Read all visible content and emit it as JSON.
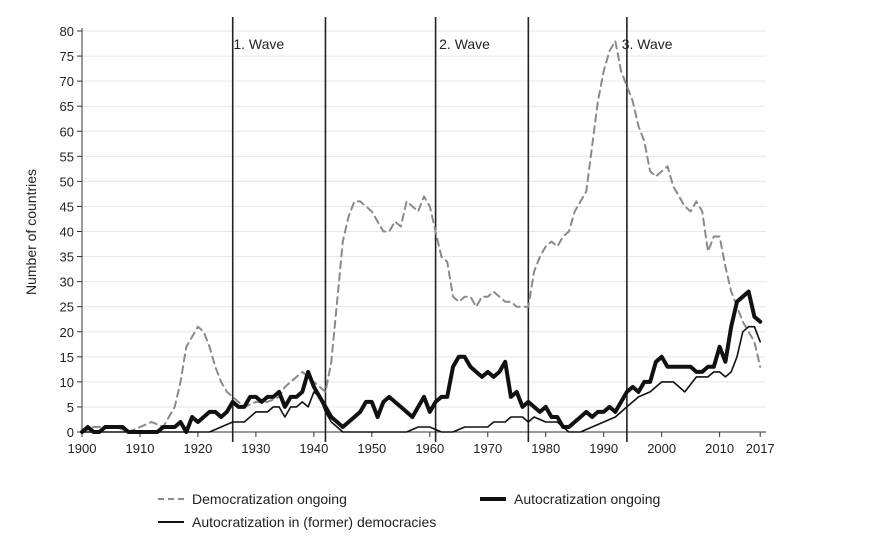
{
  "chart_data": {
    "type": "line",
    "title": "",
    "xlabel": "",
    "ylabel": "Number of countries",
    "xlim": [
      1900,
      2018
    ],
    "ylim": [
      0,
      80
    ],
    "xticks": [
      "1900",
      "1910",
      "1920",
      "1930",
      "1940",
      "1950",
      "1960",
      "1970",
      "1980",
      "1990",
      "2000",
      "2010",
      "2017"
    ],
    "xtick_values": [
      1900,
      1910,
      1920,
      1930,
      1940,
      1950,
      1960,
      1970,
      1980,
      1990,
      2000,
      2010,
      2017
    ],
    "yticks": [
      "0",
      "5",
      "10",
      "15",
      "20",
      "25",
      "30",
      "35",
      "40",
      "45",
      "50",
      "55",
      "60",
      "65",
      "70",
      "75",
      "80"
    ],
    "ytick_values": [
      0,
      5,
      10,
      15,
      20,
      25,
      30,
      35,
      40,
      45,
      50,
      55,
      60,
      65,
      70,
      75,
      80
    ],
    "grid": true,
    "legend_position": "bottom",
    "period_lines": [
      1926,
      1942,
      1961,
      1977,
      1994
    ],
    "wave_labels": [
      {
        "label": "1. Wave",
        "x": 1930.5
      },
      {
        "label": "2. Wave",
        "x": 1966
      },
      {
        "label": "3. Wave",
        "x": 1997.5
      }
    ],
    "series": [
      {
        "name": "Democratization ongoing",
        "style": "dashed",
        "color": "#8a8a8a",
        "x": [
          1900,
          1902,
          1904,
          1906,
          1908,
          1910,
          1912,
          1914,
          1915,
          1916,
          1917,
          1918,
          1919,
          1920,
          1921,
          1922,
          1923,
          1924,
          1925,
          1926,
          1928,
          1930,
          1932,
          1934,
          1935,
          1936,
          1937,
          1938,
          1939,
          1940,
          1941,
          1942,
          1943,
          1944,
          1945,
          1946,
          1947,
          1948,
          1949,
          1950,
          1951,
          1952,
          1953,
          1954,
          1955,
          1956,
          1957,
          1958,
          1959,
          1960,
          1961,
          1962,
          1963,
          1964,
          1965,
          1966,
          1967,
          1968,
          1969,
          1970,
          1971,
          1972,
          1973,
          1974,
          1975,
          1976,
          1977,
          1978,
          1979,
          1980,
          1981,
          1982,
          1983,
          1984,
          1985,
          1986,
          1987,
          1988,
          1989,
          1990,
          1991,
          1992,
          1993,
          1994,
          1995,
          1996,
          1997,
          1998,
          1999,
          2000,
          2001,
          2002,
          2003,
          2004,
          2005,
          2006,
          2007,
          2008,
          2009,
          2010,
          2011,
          2012,
          2013,
          2014,
          2015,
          2016,
          2017
        ],
        "values": [
          0,
          1,
          1,
          1,
          0,
          1,
          2,
          1,
          3,
          5,
          10,
          17,
          19,
          21,
          20,
          17,
          13,
          10,
          8,
          7,
          5,
          6,
          6,
          7,
          9,
          10,
          11,
          12,
          11,
          10,
          9,
          8,
          14,
          26,
          38,
          43,
          46,
          46,
          45,
          44,
          42,
          40,
          40,
          42,
          41,
          46,
          45,
          44,
          47,
          45,
          40,
          35,
          34,
          27,
          26,
          27,
          27,
          25,
          27,
          27,
          28,
          27,
          26,
          26,
          25,
          25,
          25,
          32,
          35,
          37,
          38,
          37,
          39,
          40,
          44,
          46,
          48,
          57,
          66,
          72,
          76,
          78,
          72,
          69,
          66,
          61,
          58,
          52,
          51,
          52,
          53,
          49,
          47,
          45,
          44,
          46,
          44,
          36,
          39,
          39,
          33,
          28,
          25,
          22,
          20,
          18,
          13
        ]
      },
      {
        "name": "Autocratization ongoing",
        "style": "solid-thick",
        "color": "#111111",
        "x": [
          1900,
          1901,
          1902,
          1903,
          1904,
          1905,
          1906,
          1907,
          1908,
          1909,
          1910,
          1911,
          1912,
          1913,
          1914,
          1915,
          1916,
          1917,
          1918,
          1919,
          1920,
          1921,
          1922,
          1923,
          1924,
          1925,
          1926,
          1927,
          1928,
          1929,
          1930,
          1931,
          1932,
          1933,
          1934,
          1935,
          1936,
          1937,
          1938,
          1939,
          1940,
          1941,
          1942,
          1943,
          1944,
          1945,
          1946,
          1947,
          1948,
          1949,
          1950,
          1951,
          1952,
          1953,
          1954,
          1955,
          1956,
          1957,
          1958,
          1959,
          1960,
          1961,
          1962,
          1963,
          1964,
          1965,
          1966,
          1967,
          1968,
          1969,
          1970,
          1971,
          1972,
          1973,
          1974,
          1975,
          1976,
          1977,
          1978,
          1979,
          1980,
          1981,
          1982,
          1983,
          1984,
          1985,
          1986,
          1987,
          1988,
          1989,
          1990,
          1991,
          1992,
          1993,
          1994,
          1995,
          1996,
          1997,
          1998,
          1999,
          2000,
          2001,
          2002,
          2003,
          2004,
          2005,
          2006,
          2007,
          2008,
          2009,
          2010,
          2011,
          2012,
          2013,
          2014,
          2015,
          2016,
          2017
        ],
        "values": [
          0,
          1,
          0,
          0,
          1,
          1,
          1,
          1,
          0,
          0,
          0,
          0,
          0,
          0,
          1,
          1,
          1,
          2,
          0,
          3,
          2,
          3,
          4,
          4,
          3,
          4,
          6,
          5,
          5,
          7,
          7,
          6,
          7,
          7,
          8,
          5,
          7,
          7,
          8,
          12,
          9,
          7,
          5,
          3,
          2,
          1,
          2,
          3,
          4,
          6,
          6,
          3,
          6,
          7,
          6,
          5,
          4,
          3,
          5,
          7,
          4,
          6,
          7,
          7,
          13,
          15,
          15,
          13,
          12,
          11,
          12,
          11,
          12,
          14,
          7,
          8,
          5,
          6,
          5,
          4,
          5,
          3,
          3,
          1,
          1,
          2,
          3,
          4,
          3,
          4,
          4,
          5,
          4,
          6,
          8,
          9,
          8,
          10,
          10,
          14,
          15,
          13,
          13,
          13,
          13,
          13,
          12,
          12,
          13,
          13,
          17,
          14,
          21,
          26,
          27,
          28,
          23,
          22
        ]
      },
      {
        "name": "Autocratization in (former) democracies",
        "style": "solid",
        "color": "#111111",
        "x": [
          1900,
          1902,
          1904,
          1906,
          1908,
          1910,
          1912,
          1914,
          1916,
          1918,
          1920,
          1922,
          1924,
          1926,
          1928,
          1930,
          1931,
          1932,
          1933,
          1934,
          1935,
          1936,
          1937,
          1938,
          1939,
          1940,
          1941,
          1942,
          1943,
          1944,
          1945,
          1946,
          1948,
          1950,
          1952,
          1954,
          1956,
          1958,
          1960,
          1962,
          1964,
          1966,
          1968,
          1970,
          1971,
          1972,
          1973,
          1974,
          1975,
          1976,
          1977,
          1978,
          1980,
          1982,
          1984,
          1986,
          1988,
          1990,
          1992,
          1994,
          1996,
          1998,
          2000,
          2002,
          2004,
          2006,
          2008,
          2009,
          2010,
          2011,
          2012,
          2013,
          2014,
          2015,
          2016,
          2017
        ],
        "values": [
          0,
          0,
          0,
          0,
          0,
          0,
          0,
          0,
          0,
          0,
          0,
          0,
          1,
          2,
          2,
          4,
          4,
          4,
          5,
          5,
          3,
          5,
          5,
          6,
          5,
          8,
          7,
          4,
          2,
          1,
          0,
          0,
          0,
          0,
          0,
          0,
          0,
          1,
          1,
          0,
          0,
          1,
          1,
          1,
          2,
          2,
          2,
          3,
          3,
          3,
          2,
          3,
          2,
          2,
          0,
          0,
          1,
          2,
          3,
          5,
          7,
          8,
          10,
          10,
          8,
          11,
          11,
          12,
          12,
          11,
          12,
          15,
          20,
          21,
          21,
          18
        ]
      }
    ]
  }
}
